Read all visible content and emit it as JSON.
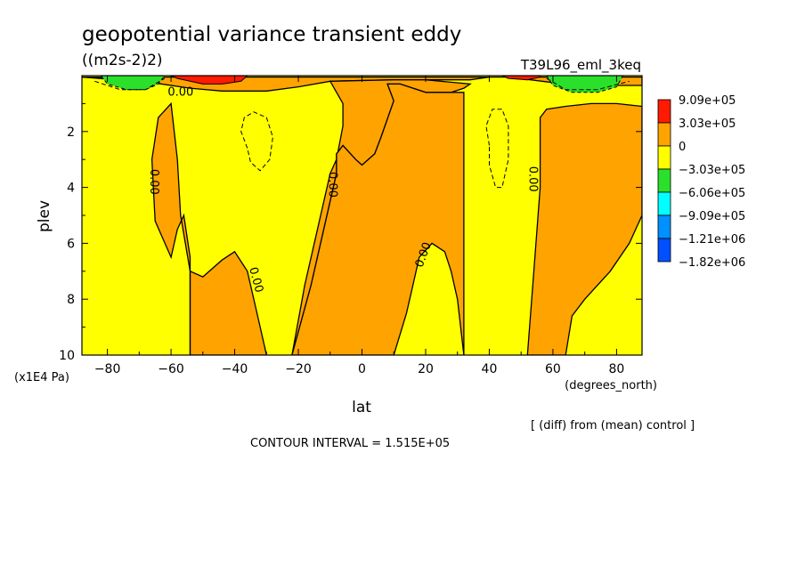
{
  "chart_data": {
    "type": "heatmap",
    "title": "geopotential variance transient eddy",
    "units": "((m2s-2)2)",
    "run_label": "T39L96_eml_3keq",
    "xlabel": "lat",
    "xunits": "(degrees_north)",
    "ylabel": "plev",
    "yunits": "(x1E4 Pa)",
    "xlim": [
      -88,
      88
    ],
    "ylim": [
      10,
      0
    ],
    "x_ticks": [
      "-80",
      "-60",
      "-40",
      "-20",
      "0",
      "20",
      "40",
      "60",
      "80"
    ],
    "y_ticks": [
      "2",
      "4",
      "6",
      "8",
      "10"
    ],
    "diff_note": "[ (diff) from (mean) control ]",
    "contour_interval": "CONTOUR INTERVAL = 1.515E+05",
    "contour_label": "0.00",
    "legend": {
      "labels": [
        "9.09e+05",
        "3.03e+05",
        "0",
        "-3.03e+05",
        "-6.06e+05",
        "-9.09e+05",
        "-1.21e+06",
        "-1.82e+06"
      ],
      "colors": [
        "#ff1a00",
        "#ffa300",
        "#ffff00",
        "#2be02b",
        "#00ffff",
        "#0090ff",
        "#0050ff"
      ]
    },
    "colors": {
      "background_band": "#ffff00",
      "positive_band": "#ffa300",
      "high_band": "#ff1a00",
      "negative_band": "#2be02b"
    },
    "regions": {
      "positive": [
        [
          [
            -88,
            0.05
          ],
          [
            -66,
            0.25
          ],
          [
            -54,
            0.45
          ],
          [
            -44,
            0.55
          ],
          [
            -30,
            0.55
          ],
          [
            -20,
            0.4
          ],
          [
            -10,
            0.2
          ],
          [
            10,
            0.15
          ],
          [
            34,
            0.15
          ],
          [
            40,
            0.05
          ],
          [
            46,
            0.05
          ],
          [
            60,
            0.25
          ],
          [
            76,
            0.35
          ],
          [
            88,
            0.35
          ],
          [
            88,
            0.05
          ]
        ],
        [
          [
            -88,
            0.05
          ],
          [
            -66,
            0.05
          ],
          [
            -66,
            0.05
          ],
          [
            -88,
            0.05
          ]
        ],
        [
          [
            -54,
            10
          ],
          [
            -54,
            7.0
          ],
          [
            -50,
            7.2
          ],
          [
            -44,
            6.6
          ],
          [
            -40,
            6.3
          ],
          [
            -36,
            7.0
          ],
          [
            -33,
            8.5
          ],
          [
            -30,
            10
          ]
        ],
        [
          [
            -65,
            5.2
          ],
          [
            -66,
            3.0
          ],
          [
            -64,
            1.5
          ],
          [
            -60,
            1.0
          ],
          [
            -58,
            3.0
          ],
          [
            -57,
            5.0
          ],
          [
            -54,
            7.0
          ],
          [
            -54,
            10
          ],
          [
            -54,
            6.5
          ],
          [
            -56,
            5.0
          ],
          [
            -58,
            5.5
          ],
          [
            -60,
            6.5
          ],
          [
            -65,
            5.2
          ]
        ],
        [
          [
            -22,
            10
          ],
          [
            -16,
            7.5
          ],
          [
            -12,
            5.5
          ],
          [
            -8,
            3.5
          ],
          [
            -8,
            2.8
          ],
          [
            -6,
            2.5
          ],
          [
            -2,
            3.0
          ],
          [
            0,
            3.2
          ],
          [
            4,
            2.8
          ],
          [
            6,
            2.2
          ],
          [
            10,
            0.9
          ],
          [
            8,
            0.3
          ],
          [
            12,
            0.3
          ],
          [
            20,
            0.6
          ],
          [
            28,
            0.6
          ],
          [
            32,
            0.45
          ],
          [
            34,
            0.3
          ],
          [
            20,
            0.15
          ],
          [
            10,
            0.15
          ],
          [
            -10,
            0.2
          ],
          [
            -6,
            1.0
          ],
          [
            -6,
            1.8
          ],
          [
            -8,
            3.0
          ],
          [
            -10,
            3.5
          ],
          [
            -14,
            5.5
          ],
          [
            -18,
            7.5
          ],
          [
            -22,
            10
          ]
        ],
        [
          [
            10,
            0.9
          ],
          [
            6,
            2.2
          ],
          [
            4,
            2.8
          ],
          [
            0,
            3.2
          ],
          [
            -2,
            3.0
          ],
          [
            -6,
            2.5
          ],
          [
            -8,
            2.8
          ],
          [
            -8,
            3.5
          ],
          [
            -12,
            5.5
          ],
          [
            -16,
            7.5
          ],
          [
            -22,
            10
          ],
          [
            10,
            10
          ],
          [
            14,
            8.5
          ],
          [
            16,
            7.5
          ],
          [
            18,
            6.5
          ],
          [
            22,
            6.0
          ],
          [
            26,
            6.3
          ],
          [
            28,
            7.0
          ],
          [
            30,
            8.0
          ],
          [
            32,
            10
          ],
          [
            32,
            0.6
          ],
          [
            28,
            0.6
          ],
          [
            20,
            0.6
          ],
          [
            12,
            0.3
          ],
          [
            8,
            0.3
          ],
          [
            10,
            0.9
          ]
        ],
        [
          [
            52,
            10
          ],
          [
            54,
            7.0
          ],
          [
            56,
            4.0
          ],
          [
            56,
            1.5
          ],
          [
            58,
            1.2
          ],
          [
            64,
            1.1
          ],
          [
            72,
            1.0
          ],
          [
            80,
            1.0
          ],
          [
            88,
            1.1
          ],
          [
            88,
            5.0
          ],
          [
            84,
            6.0
          ],
          [
            78,
            7.0
          ],
          [
            70,
            8.0
          ],
          [
            66,
            8.6
          ],
          [
            64,
            10
          ]
        ]
      ],
      "high": [
        [
          [
            -60,
            0.0
          ],
          [
            -58,
            0.1
          ],
          [
            -50,
            0.3
          ],
          [
            -44,
            0.3
          ],
          [
            -38,
            0.2
          ],
          [
            -36,
            0.0
          ]
        ],
        [
          [
            44,
            0.0
          ],
          [
            46,
            0.1
          ],
          [
            52,
            0.15
          ],
          [
            56,
            0.05
          ],
          [
            56,
            0.0
          ]
        ]
      ],
      "negative": [
        [
          [
            -82,
            0.0
          ],
          [
            -80,
            0.3
          ],
          [
            -74,
            0.5
          ],
          [
            -68,
            0.5
          ],
          [
            -64,
            0.3
          ],
          [
            -62,
            0.0
          ]
        ],
        [
          [
            58,
            0.0
          ],
          [
            60,
            0.35
          ],
          [
            66,
            0.6
          ],
          [
            74,
            0.6
          ],
          [
            80,
            0.4
          ],
          [
            82,
            0.0
          ]
        ]
      ],
      "dashed": [
        [
          [
            -36,
            2.6
          ],
          [
            -38,
            2.0
          ],
          [
            -37,
            1.5
          ],
          [
            -34,
            1.3
          ],
          [
            -30,
            1.5
          ],
          [
            -28,
            2.2
          ],
          [
            -29,
            3.0
          ],
          [
            -32,
            3.4
          ],
          [
            -35,
            3.1
          ],
          [
            -36,
            2.6
          ]
        ],
        [
          [
            40,
            2.5
          ],
          [
            39,
            1.8
          ],
          [
            41,
            1.2
          ],
          [
            44,
            1.2
          ],
          [
            46,
            1.8
          ],
          [
            46,
            3.0
          ],
          [
            44,
            4.0
          ],
          [
            42,
            4.0
          ],
          [
            40,
            3.2
          ],
          [
            40,
            2.5
          ]
        ],
        [
          [
            -84,
            0.2
          ],
          [
            -76,
            0.5
          ],
          [
            -68,
            0.5
          ],
          [
            -62,
            0.1
          ]
        ],
        [
          [
            58,
            0.1
          ],
          [
            64,
            0.5
          ],
          [
            74,
            0.5
          ],
          [
            84,
            0.2
          ]
        ]
      ]
    }
  }
}
